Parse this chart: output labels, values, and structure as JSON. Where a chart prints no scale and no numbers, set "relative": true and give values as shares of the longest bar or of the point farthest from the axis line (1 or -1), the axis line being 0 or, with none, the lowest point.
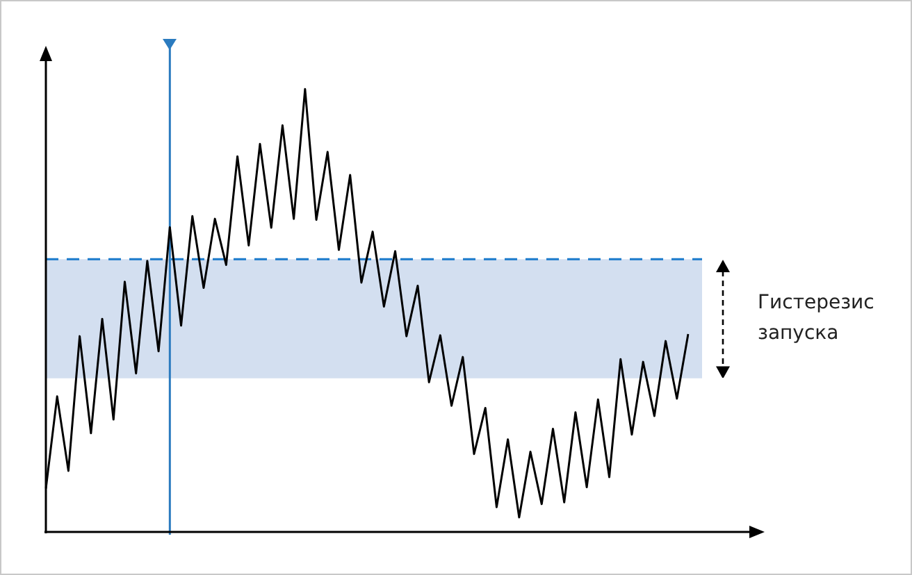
{
  "chart_data": {
    "type": "line",
    "relative": true,
    "tick_labels": false,
    "marker": "none",
    "legend": false,
    "categories": [
      null,
      null,
      null,
      null,
      null,
      null,
      null,
      null,
      null,
      null,
      null,
      null,
      null,
      null,
      null,
      null,
      null,
      null,
      null,
      null,
      null,
      null,
      null,
      null,
      null,
      null,
      null,
      null,
      null,
      null,
      null,
      null,
      null,
      null,
      null,
      null,
      null,
      null,
      null,
      null,
      null,
      null,
      null,
      null,
      null,
      null,
      null,
      null,
      null,
      null,
      null,
      null,
      null,
      null,
      null,
      null,
      null,
      null
    ],
    "series": [
      {
        "color": "#000000",
        "values": [
          0.098,
          0.306,
          0.138,
          0.442,
          0.223,
          0.481,
          0.254,
          0.565,
          0.358,
          0.612,
          0.408,
          0.688,
          0.466,
          0.713,
          0.551,
          0.707,
          0.603,
          0.848,
          0.647,
          0.876,
          0.687,
          0.918,
          0.707,
          1,
          0.705,
          0.858,
          0.637,
          0.806,
          0.563,
          0.678,
          0.509,
          0.634,
          0.442,
          0.556,
          0.338,
          0.444,
          0.285,
          0.395,
          0.176,
          0.28,
          0.056,
          0.209,
          0.033,
          0.181,
          0.063,
          0.233,
          0.067,
          0.27,
          0.101,
          0.299,
          0.124,
          0.39,
          0.22,
          0.384,
          0.262,
          0.431,
          0.301,
          0.447
        ]
      }
    ],
    "ref_lines": [
      {
        "axis": "y",
        "value": 0.616,
        "color": "#1a7acb",
        "line_style": "dashed"
      }
    ],
    "bands": [
      {
        "axis": "y",
        "from": 0.347,
        "to": 0.616,
        "color": "#d3dff0",
        "label": "Гистерезис запуска"
      }
    ]
  }
}
